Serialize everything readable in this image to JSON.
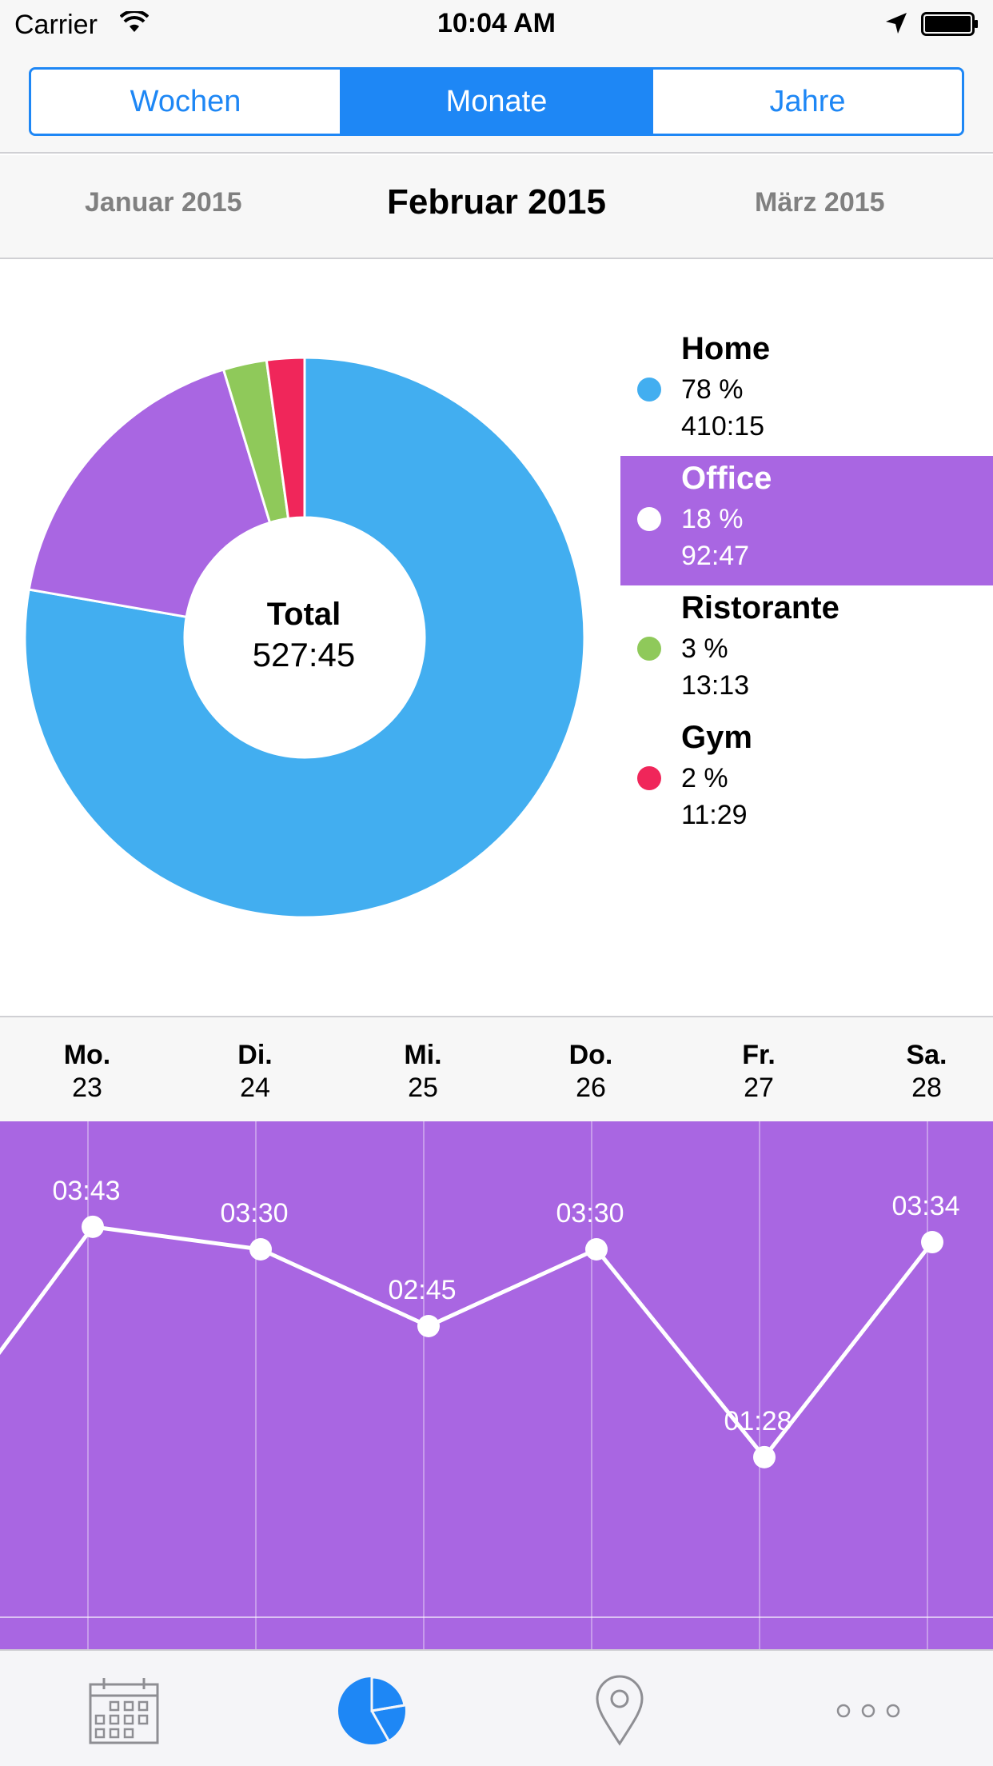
{
  "status_bar": {
    "carrier": "Carrier",
    "time": "10:04 AM"
  },
  "segmented": {
    "items": [
      "Wochen",
      "Monate",
      "Jahre"
    ],
    "selected": "Monate"
  },
  "month_nav": {
    "prev": "Januar 2015",
    "current": "Februar 2015",
    "next": "März 2015"
  },
  "donut": {
    "center_label": "Total",
    "center_value": "527:45"
  },
  "legend": [
    {
      "name": "Home",
      "percent": "78 %",
      "time": "410:15",
      "color": "#42aef0"
    },
    {
      "name": "Office",
      "percent": "18 %",
      "time": "92:47",
      "color": "#a966e2",
      "selected": true
    },
    {
      "name": "Ristorante",
      "percent": "3 %",
      "time": "13:13",
      "color": "#8fc95a"
    },
    {
      "name": "Gym",
      "percent": "2 %",
      "time": "11:29",
      "color": "#f0265a"
    }
  ],
  "days": [
    {
      "name": "Mo.",
      "date": "23"
    },
    {
      "name": "Di.",
      "date": "24"
    },
    {
      "name": "Mi.",
      "date": "25"
    },
    {
      "name": "Do.",
      "date": "26"
    },
    {
      "name": "Fr.",
      "date": "27"
    },
    {
      "name": "Sa.",
      "date": "28"
    }
  ],
  "chart_data": [
    {
      "type": "pie",
      "categories": [
        "Home",
        "Office",
        "Ristorante",
        "Gym"
      ],
      "values": [
        410.25,
        92.78,
        13.22,
        11.48
      ],
      "percent": [
        78,
        18,
        3,
        2
      ],
      "colors": [
        "#42aef0",
        "#a966e2",
        "#8fc95a",
        "#f0265a"
      ]
    },
    {
      "type": "line",
      "series": [
        {
          "categories": [
            "Mo. 23",
            "Di. 24",
            "Mi. 25",
            "Do. 26",
            "Fr. 27",
            "Sa. 28"
          ],
          "labels": [
            "03:43",
            "03:30",
            "02:45",
            "03:30",
            "01:28",
            "03:34"
          ],
          "values": [
            3.72,
            3.5,
            2.75,
            3.5,
            1.47,
            3.57
          ],
          "previous_value": 1.45
        }
      ],
      "color": "#ffffff"
    }
  ],
  "tabs": [
    {
      "icon": "calendar-icon"
    },
    {
      "icon": "pie-chart-icon",
      "active": true
    },
    {
      "icon": "location-pin-icon"
    },
    {
      "icon": "more-dots-icon"
    }
  ],
  "colors": {
    "accent": "#1e87f5",
    "office_purple": "#a966e2"
  }
}
